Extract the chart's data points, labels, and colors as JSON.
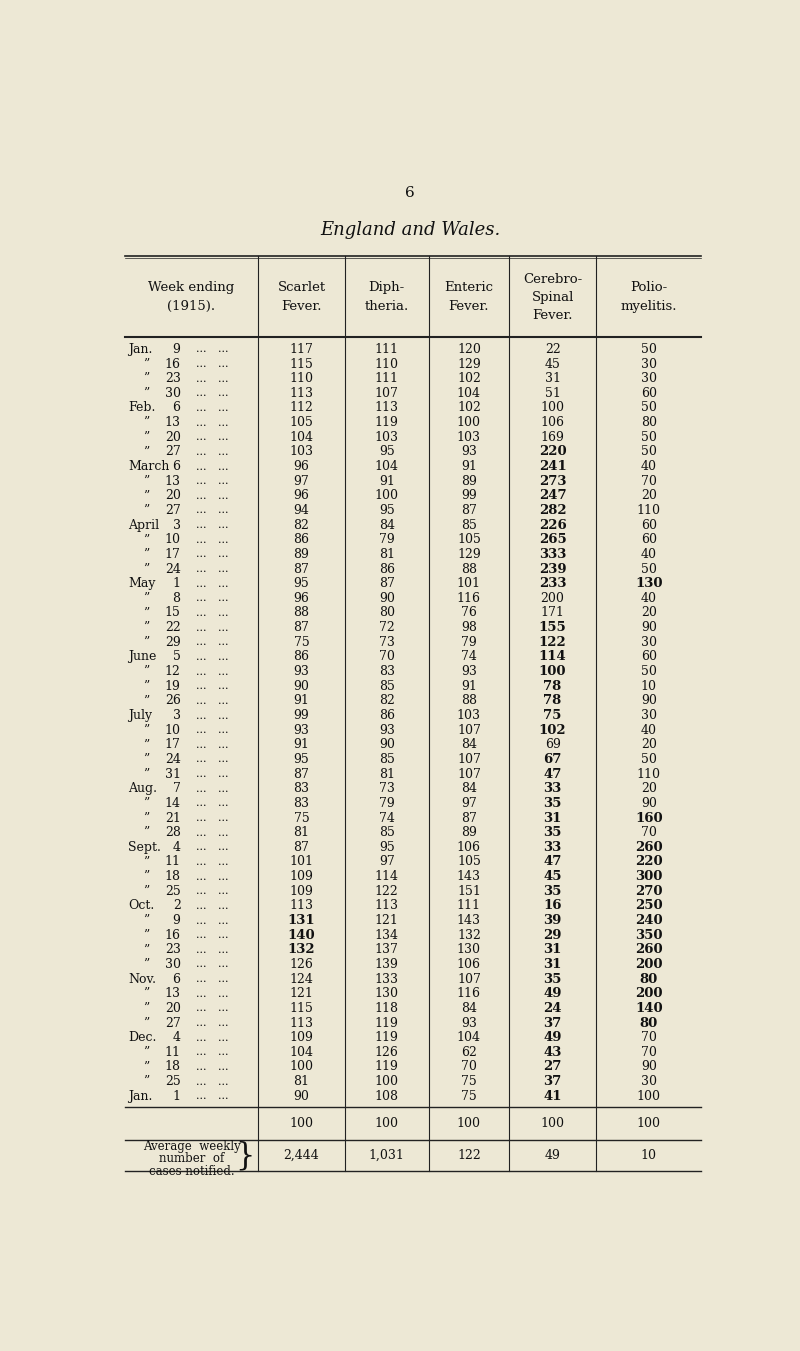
{
  "page_number": "6",
  "title": "England and Wales.",
  "col_headers_line1": [
    "Week ending",
    "Scarlet",
    "Diph-",
    "Enteric",
    "Cerebro-",
    "Polio-"
  ],
  "col_headers_line2": [
    "(1915).",
    "Fever.",
    "theria.",
    "Fever.",
    "Spinal",
    "myelitis."
  ],
  "col_headers_line3": [
    "",
    "",
    "",
    "",
    "Fever.",
    ""
  ],
  "rows": [
    [
      "Jan.",
      "9",
      "117",
      "111",
      "120",
      "22",
      "50"
    ],
    [
      "\"",
      "16",
      "115",
      "110",
      "129",
      "45",
      "30"
    ],
    [
      "\"",
      "23",
      "110",
      "111",
      "102",
      "31",
      "30"
    ],
    [
      "\"",
      "30",
      "113",
      "107",
      "104",
      "51",
      "60"
    ],
    [
      "Feb.",
      "6",
      "112",
      "113",
      "102",
      "100",
      "50"
    ],
    [
      "\"",
      "13",
      "105",
      "119",
      "100",
      "106",
      "80"
    ],
    [
      "\"",
      "20",
      "104",
      "103",
      "103",
      "169",
      "50"
    ],
    [
      "\"",
      "27",
      "103",
      "95",
      "93",
      "220",
      "50"
    ],
    [
      "March",
      "6",
      "96",
      "104",
      "91",
      "241",
      "40"
    ],
    [
      "\"",
      "13",
      "97",
      "91",
      "89",
      "273",
      "70"
    ],
    [
      "\"",
      "20",
      "96",
      "100",
      "99",
      "247",
      "20"
    ],
    [
      "\"",
      "27",
      "94",
      "95",
      "87",
      "282",
      "110"
    ],
    [
      "April",
      "3",
      "82",
      "84",
      "85",
      "226",
      "60"
    ],
    [
      "\"",
      "10",
      "86",
      "79",
      "105",
      "265",
      "60"
    ],
    [
      "\"",
      "17",
      "89",
      "81",
      "129",
      "333",
      "40"
    ],
    [
      "\"",
      "24",
      "87",
      "86",
      "88",
      "239",
      "50"
    ],
    [
      "May",
      "1",
      "95",
      "87",
      "101",
      "233",
      "130"
    ],
    [
      "\"",
      "8",
      "96",
      "90",
      "116",
      "200",
      "40"
    ],
    [
      "\"",
      "15",
      "88",
      "80",
      "76",
      "171",
      "20"
    ],
    [
      "\"",
      "22",
      "87",
      "72",
      "98",
      "155",
      "90"
    ],
    [
      "\"",
      "29",
      "75",
      "73",
      "79",
      "122",
      "30"
    ],
    [
      "June",
      "5",
      "86",
      "70",
      "74",
      "114",
      "60"
    ],
    [
      "\"",
      "12",
      "93",
      "83",
      "93",
      "100",
      "50"
    ],
    [
      "\"",
      "19",
      "90",
      "85",
      "91",
      "78",
      "10"
    ],
    [
      "\"",
      "26",
      "91",
      "82",
      "88",
      "78",
      "90"
    ],
    [
      "July",
      "3",
      "99",
      "86",
      "103",
      "75",
      "30"
    ],
    [
      "\"",
      "10",
      "93",
      "93",
      "107",
      "102",
      "40"
    ],
    [
      "\"",
      "17",
      "91",
      "90",
      "84",
      "69",
      "20"
    ],
    [
      "\"",
      "24",
      "95",
      "85",
      "107",
      "67",
      "50"
    ],
    [
      "\"",
      "31",
      "87",
      "81",
      "107",
      "47",
      "110"
    ],
    [
      "Aug.",
      "7",
      "83",
      "73",
      "84",
      "33",
      "20"
    ],
    [
      "\"",
      "14",
      "83",
      "79",
      "97",
      "35",
      "90"
    ],
    [
      "\"",
      "21",
      "75",
      "74",
      "87",
      "31",
      "160"
    ],
    [
      "\"",
      "28",
      "81",
      "85",
      "89",
      "35",
      "70"
    ],
    [
      "Sept.",
      "4",
      "87",
      "95",
      "106",
      "33",
      "260"
    ],
    [
      "\"",
      "11",
      "101",
      "97",
      "105",
      "47",
      "220"
    ],
    [
      "\"",
      "18",
      "109",
      "114",
      "143",
      "45",
      "300"
    ],
    [
      "\"",
      "25",
      "109",
      "122",
      "151",
      "35",
      "270"
    ],
    [
      "Oct.",
      "2",
      "113",
      "113",
      "111",
      "16",
      "250"
    ],
    [
      "\"",
      "9",
      "131",
      "121",
      "143",
      "39",
      "240"
    ],
    [
      "\"",
      "16",
      "140",
      "134",
      "132",
      "29",
      "350"
    ],
    [
      "\"",
      "23",
      "132",
      "137",
      "130",
      "31",
      "260"
    ],
    [
      "\"",
      "30",
      "126",
      "139",
      "106",
      "31",
      "200"
    ],
    [
      "Nov.",
      "6",
      "124",
      "133",
      "107",
      "35",
      "80"
    ],
    [
      "\"",
      "13",
      "121",
      "130",
      "116",
      "49",
      "200"
    ],
    [
      "\"",
      "20",
      "115",
      "118",
      "84",
      "24",
      "140"
    ],
    [
      "\"",
      "27",
      "113",
      "119",
      "93",
      "37",
      "80"
    ],
    [
      "Dec.",
      "4",
      "109",
      "119",
      "104",
      "49",
      "70"
    ],
    [
      "\"",
      "11",
      "104",
      "126",
      "62",
      "43",
      "70"
    ],
    [
      "\"",
      "18",
      "100",
      "119",
      "70",
      "27",
      "90"
    ],
    [
      "\"",
      "25",
      "81",
      "100",
      "75",
      "37",
      "30"
    ],
    [
      "Jan.",
      "1",
      "90",
      "108",
      "75",
      "41",
      "100"
    ]
  ],
  "bold_cerebro": [
    7,
    8,
    9,
    10,
    11,
    12,
    13,
    14,
    15,
    16,
    19,
    20,
    21,
    22,
    23,
    24,
    25,
    26,
    28,
    29,
    30,
    31,
    32,
    33,
    34,
    35,
    36,
    37,
    38,
    39,
    40,
    41,
    42,
    43,
    44,
    45,
    46,
    47,
    48,
    49,
    50,
    51
  ],
  "bold_polio": [
    16,
    32,
    34,
    35,
    36,
    37,
    38,
    39,
    40,
    41,
    42,
    43,
    44,
    45,
    46
  ],
  "bold_scarlet": [
    39,
    40,
    41
  ],
  "avg_values": [
    "2,444",
    "1,031",
    "122",
    "49",
    "10"
  ],
  "bg_color": "#ede8d5",
  "text_color": "#111111",
  "line_color": "#222222"
}
